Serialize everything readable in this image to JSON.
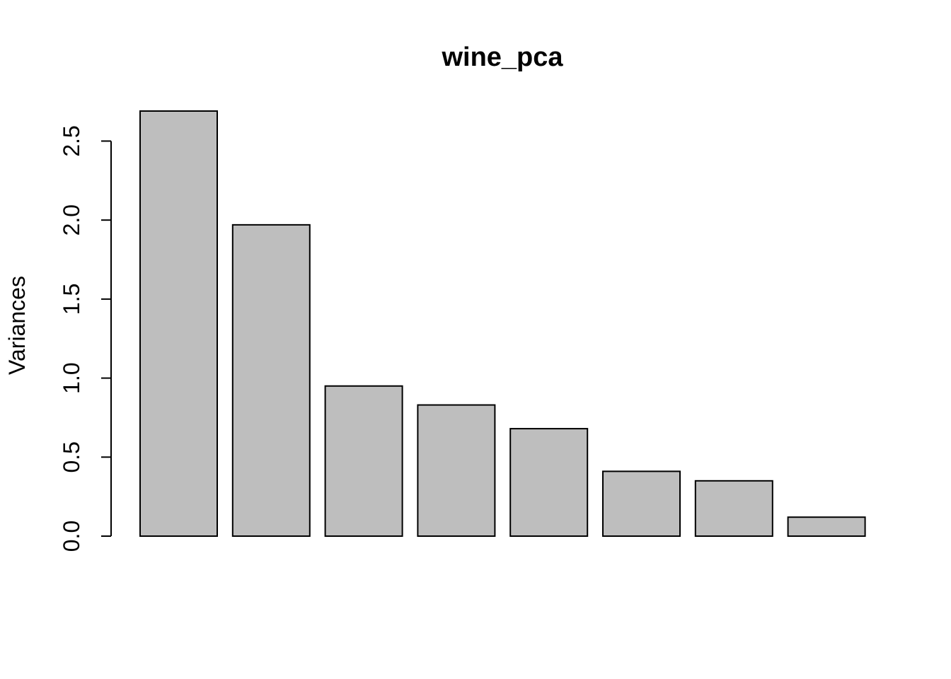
{
  "chart_data": {
    "type": "bar",
    "title": "wine_pca",
    "xlabel": "",
    "ylabel": "Variances",
    "categories": [
      "",
      "",
      "",
      "",
      "",
      "",
      "",
      ""
    ],
    "values": [
      2.69,
      1.97,
      0.95,
      0.83,
      0.68,
      0.41,
      0.35,
      0.12
    ],
    "ylim": [
      0,
      2.69
    ],
    "yticks": [
      0.0,
      0.5,
      1.0,
      1.5,
      2.0,
      2.5
    ],
    "ytick_labels": [
      "0.0",
      "0.5",
      "1.0",
      "1.5",
      "2.0",
      "2.5"
    ],
    "bar_color": "#bebebe",
    "bar_border_color": "#000000",
    "grid": false,
    "legend": "none"
  }
}
